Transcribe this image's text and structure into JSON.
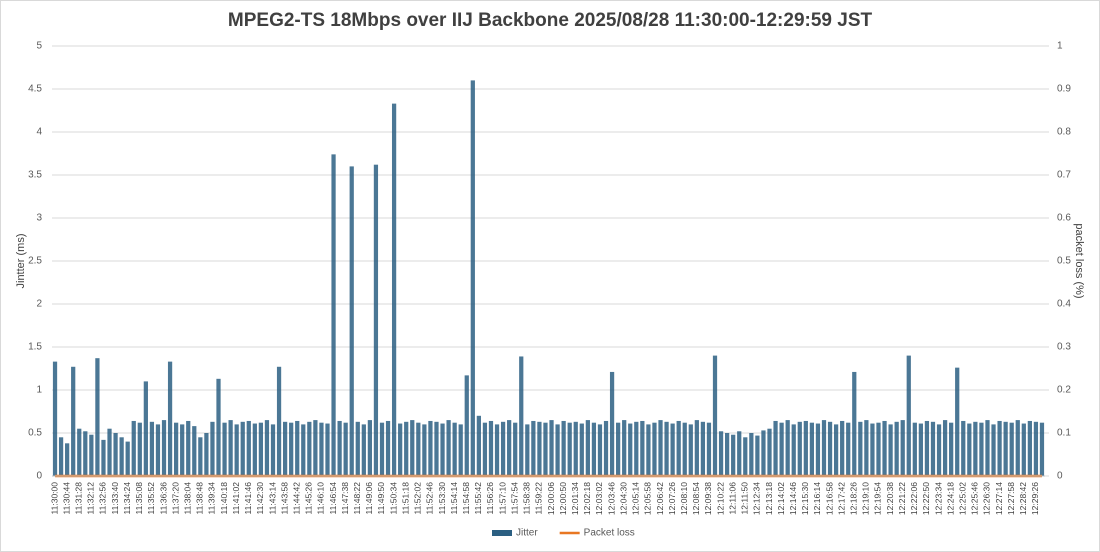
{
  "chart_data": {
    "type": "bar",
    "title": "MPEG2-TS 18Mbps over IIJ Backbone  2025/08/28 11:30:00-12:29:59 JST",
    "y_label": "Jintter (ms)",
    "y2_label": "packet loss (%)",
    "categories": [
      "11:30:00",
      null,
      "11:30:44",
      null,
      "11:31:28",
      null,
      "11:32:12",
      null,
      "11:32:56",
      null,
      "11:33:40",
      null,
      "11:34:24",
      null,
      "11:35:08",
      null,
      "11:35:52",
      null,
      "11:36:36",
      null,
      "11:37:20",
      null,
      "11:38:04",
      null,
      "11:38:48",
      null,
      "11:39:34",
      null,
      "11:40:18",
      null,
      "11:41:02",
      null,
      "11:41:46",
      null,
      "11:42:30",
      null,
      "11:43:14",
      null,
      "11:43:58",
      null,
      "11:44:42",
      null,
      "11:45:26",
      null,
      "11:46:10",
      null,
      "11:46:54",
      null,
      "11:47:38",
      null,
      "11:48:22",
      null,
      "11:49:06",
      null,
      "11:49:50",
      null,
      "11:50:34",
      null,
      "11:51:18",
      null,
      "11:52:02",
      null,
      "11:52:46",
      null,
      "11:53:30",
      null,
      "11:54:14",
      null,
      "11:54:58",
      null,
      "11:55:42",
      null,
      "11:56:26",
      null,
      "11:57:10",
      null,
      "11:57:54",
      null,
      "11:58:38",
      null,
      "11:59:22",
      null,
      "12:00:06",
      null,
      "12:00:50",
      null,
      "12:01:34",
      null,
      "12:02:18",
      null,
      "12:03:02",
      null,
      "12:03:46",
      null,
      "12:04:30",
      null,
      "12:05:14",
      null,
      "12:05:58",
      null,
      "12:06:42",
      null,
      "12:07:26",
      null,
      "12:08:10",
      null,
      "12:08:54",
      null,
      "12:09:38",
      null,
      "12:10:22",
      null,
      "12:11:06",
      null,
      "12:11:50",
      null,
      "12:12:34",
      null,
      "12:13:18",
      null,
      "12:14:02",
      null,
      "12:14:46",
      null,
      "12:15:30",
      null,
      "12:16:14",
      null,
      "12:16:58",
      null,
      "12:17:42",
      null,
      "12:18:26",
      null,
      "12:19:10",
      null,
      "12:19:54",
      null,
      "12:20:38",
      null,
      "12:21:22",
      null,
      "12:22:06",
      null,
      "12:22:50",
      null,
      "12:23:34",
      null,
      "12:24:18",
      null,
      "12:25:02",
      null,
      "12:25:46",
      null,
      "12:26:30",
      null,
      "12:27:14",
      null,
      "12:27:58",
      null,
      "12:28:42",
      null,
      "12:29:26",
      null
    ],
    "series": [
      {
        "name": "Jitter",
        "color": "#2b5f82",
        "values": [
          1.33,
          0.45,
          0.38,
          1.27,
          0.55,
          0.52,
          0.48,
          1.37,
          0.42,
          0.55,
          0.5,
          0.45,
          0.4,
          0.64,
          0.62,
          1.1,
          0.63,
          0.6,
          0.65,
          1.33,
          0.62,
          0.6,
          0.64,
          0.58,
          0.45,
          0.5,
          0.63,
          1.13,
          0.62,
          0.65,
          0.6,
          0.63,
          0.64,
          0.61,
          0.62,
          0.65,
          0.6,
          1.27,
          0.63,
          0.62,
          0.64,
          0.6,
          0.63,
          0.65,
          0.62,
          0.61,
          3.74,
          0.64,
          0.62,
          3.6,
          0.63,
          0.6,
          0.65,
          3.62,
          0.62,
          0.64,
          4.33,
          0.61,
          0.63,
          0.65,
          0.62,
          0.6,
          0.64,
          0.63,
          0.61,
          0.65,
          0.62,
          0.6,
          1.17,
          4.6,
          0.7,
          0.62,
          0.64,
          0.6,
          0.63,
          0.65,
          0.62,
          1.39,
          0.6,
          0.64,
          0.63,
          0.62,
          0.65,
          0.6,
          0.64,
          0.62,
          0.63,
          0.61,
          0.65,
          0.62,
          0.6,
          0.64,
          1.21,
          0.62,
          0.65,
          0.61,
          0.63,
          0.64,
          0.6,
          0.62,
          0.65,
          0.63,
          0.61,
          0.64,
          0.62,
          0.6,
          0.65,
          0.63,
          0.62,
          1.4,
          0.52,
          0.5,
          0.48,
          0.52,
          0.45,
          0.5,
          0.47,
          0.53,
          0.55,
          0.64,
          0.62,
          0.65,
          0.6,
          0.63,
          0.64,
          0.62,
          0.61,
          0.65,
          0.63,
          0.6,
          0.64,
          0.62,
          1.21,
          0.63,
          0.65,
          0.61,
          0.62,
          0.64,
          0.6,
          0.63,
          0.65,
          1.4,
          0.62,
          0.61,
          0.64,
          0.63,
          0.6,
          0.65,
          0.62,
          1.26,
          0.64,
          0.61,
          0.63,
          0.62,
          0.65,
          0.6,
          0.64,
          0.63,
          0.62,
          0.65,
          0.61,
          0.64,
          0.63,
          0.62
        ]
      },
      {
        "name": "Packet loss",
        "color": "#e87722",
        "axis": "y2",
        "values": [
          0,
          0,
          0,
          0,
          0,
          0,
          0,
          0,
          0,
          0,
          0,
          0,
          0,
          0,
          0,
          0,
          0,
          0,
          0,
          0,
          0,
          0,
          0,
          0,
          0,
          0,
          0,
          0,
          0,
          0,
          0,
          0,
          0,
          0,
          0,
          0,
          0,
          0,
          0,
          0,
          0,
          0,
          0,
          0,
          0,
          0,
          0,
          0,
          0,
          0,
          0,
          0,
          0,
          0,
          0,
          0,
          0,
          0,
          0,
          0,
          0,
          0,
          0,
          0,
          0,
          0,
          0,
          0,
          0,
          0,
          0,
          0,
          0,
          0,
          0,
          0,
          0,
          0,
          0,
          0,
          0,
          0,
          0,
          0,
          0,
          0,
          0,
          0,
          0,
          0,
          0,
          0,
          0,
          0,
          0,
          0,
          0,
          0,
          0,
          0,
          0,
          0,
          0,
          0,
          0,
          0,
          0,
          0,
          0,
          0,
          0,
          0,
          0,
          0,
          0,
          0,
          0,
          0,
          0,
          0,
          0,
          0,
          0,
          0,
          0,
          0,
          0,
          0,
          0,
          0,
          0,
          0,
          0,
          0,
          0,
          0,
          0,
          0,
          0,
          0,
          0,
          0,
          0,
          0,
          0,
          0,
          0,
          0,
          0,
          0,
          0,
          0,
          0,
          0,
          0,
          0,
          0,
          0,
          0,
          0,
          0,
          0,
          0,
          0
        ]
      }
    ],
    "ylim": [
      0,
      5
    ],
    "yticks": [
      0,
      0.5,
      1,
      1.5,
      2,
      2.5,
      3,
      3.5,
      4,
      4.5,
      5
    ],
    "y2lim": [
      0,
      1
    ],
    "y2ticks": [
      0,
      0.1,
      0.2,
      0.3,
      0.4,
      0.5,
      0.6,
      0.7,
      0.8,
      0.9,
      1
    ],
    "grid": true,
    "legend": "bottom"
  }
}
